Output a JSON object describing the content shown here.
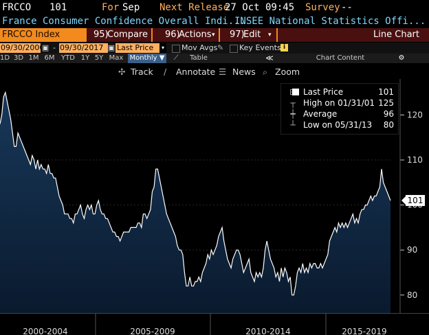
{
  "header": {
    "ticker": "FRCCO",
    "value": "101",
    "for_label": "For",
    "for_value": "Sep",
    "next_release_label": "Next Release",
    "next_release_value": "27 Oct 09:45",
    "survey_label": "Survey",
    "survey_value": "--"
  },
  "subtitle": {
    "name": "France Consumer Confidence Overall Indi...",
    "source": "INSEE National Statistics Offi..."
  },
  "menu": {
    "index_label": "FRCCO Index",
    "compare_num": "95)",
    "compare_label": "Compare",
    "actions_num": "96)",
    "actions_label": "Actions",
    "edit_num": "97)",
    "edit_label": "Edit",
    "right_label": "Line Chart"
  },
  "controls": {
    "start_date": "09/30/2000",
    "end_date": "09/30/2017",
    "field": "Last Price",
    "mov_avgs": "Mov Avgs",
    "key_events": "Key Events"
  },
  "periods": {
    "items": [
      "1D",
      "3D",
      "1M",
      "6M",
      "YTD",
      "1Y",
      "5Y",
      "Max"
    ],
    "frequency": "Monthly",
    "table_label": "Table",
    "chart_content_label": "Chart Content"
  },
  "tools": {
    "track": "Track",
    "annotate": "Annotate",
    "news": "News",
    "zoom": "Zoom"
  },
  "legend": {
    "last_price_label": "Last Price",
    "last_price_value": "101",
    "high_label": "High on 01/31/01",
    "high_value": "125",
    "average_label": "Average",
    "average_value": "96",
    "low_label": "Low on 05/31/13",
    "low_value": "80"
  },
  "colors": {
    "orange": "#f28a1d",
    "yellow": "#ffd24d",
    "cyan": "#7fd7ff",
    "fill_top": "#16324d",
    "fill_bottom": "#0b1a2d"
  },
  "chart_data": {
    "type": "area",
    "y_ticks": [
      80,
      90,
      100,
      110,
      120
    ],
    "y_tick_labels": [
      "80",
      "90",
      "100",
      "110",
      "120"
    ],
    "ylim": [
      76,
      128
    ],
    "x_labels": [
      "2000-2004",
      "2005-2009",
      "2010-2014",
      "2015-2019"
    ],
    "last_value_label": "101",
    "series": [
      {
        "values": [
          118,
          120,
          124,
          125,
          123,
          121,
          119,
          116,
          113,
          113,
          116,
          115,
          114,
          113,
          112,
          111,
          110,
          109,
          111,
          110,
          108,
          110,
          108,
          109,
          108,
          108,
          107,
          109,
          107,
          107,
          106,
          106,
          104,
          102,
          101,
          100,
          98,
          98,
          98,
          97,
          97,
          96,
          98,
          98,
          99,
          100,
          98,
          97,
          99,
          100,
          99,
          100,
          98,
          98,
          100,
          101,
          99,
          98,
          98,
          97,
          97,
          96,
          95,
          94,
          94,
          93,
          93,
          92,
          93,
          94,
          94,
          94,
          94,
          95,
          95,
          95,
          95,
          96,
          96,
          95,
          98,
          98,
          97,
          98,
          99,
          103,
          104,
          108,
          108,
          106,
          104,
          102,
          100,
          98,
          97,
          96,
          95,
          94,
          93,
          91,
          90,
          90,
          89,
          85,
          82,
          82,
          84,
          82,
          82,
          83,
          83,
          84,
          83,
          85,
          86,
          87,
          89,
          88,
          90,
          89,
          90,
          91,
          93,
          94,
          95,
          92,
          90,
          88,
          87,
          86,
          88,
          89,
          90,
          90,
          89,
          87,
          85,
          86,
          87,
          88,
          85,
          84,
          83,
          85,
          84,
          85,
          84,
          86,
          90,
          92,
          90,
          88,
          87,
          86,
          84,
          85,
          83,
          86,
          84,
          86,
          85,
          83,
          84,
          80,
          80,
          82,
          85,
          86,
          85,
          87,
          85,
          86,
          85,
          87,
          86,
          87,
          87,
          86,
          86,
          87,
          86,
          87,
          88,
          89,
          92,
          93,
          94,
          95,
          94,
          96,
          95,
          96,
          95,
          96,
          95,
          96,
          97,
          98,
          96,
          97,
          96,
          98,
          99,
          99,
          100,
          100,
          101,
          102,
          101,
          102,
          102,
          103,
          104,
          108,
          105,
          104,
          103,
          102,
          101
        ]
      }
    ]
  }
}
